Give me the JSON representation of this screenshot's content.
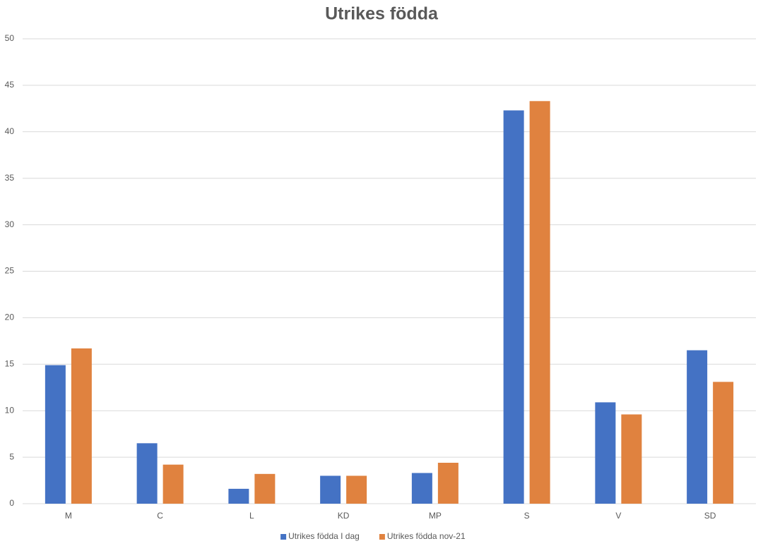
{
  "chart_data": {
    "type": "bar",
    "title": "Utrikes födda",
    "categories": [
      "M",
      "C",
      "L",
      "KD",
      "MP",
      "S",
      "V",
      "SD"
    ],
    "series": [
      {
        "name": "Utrikes födda I dag",
        "color": "#4472c4",
        "values": [
          14.9,
          6.5,
          1.6,
          3.0,
          3.3,
          42.3,
          10.9,
          16.5
        ]
      },
      {
        "name": "Utrikes födda nov-21",
        "color": "#e0823f",
        "values": [
          16.7,
          4.2,
          3.2,
          3.0,
          4.4,
          43.3,
          9.6,
          13.1
        ]
      }
    ],
    "ylim": [
      0,
      50
    ],
    "yticks": [
      0,
      5,
      10,
      15,
      20,
      25,
      30,
      35,
      40,
      45,
      50
    ],
    "grid": true,
    "legend": "bottom"
  }
}
